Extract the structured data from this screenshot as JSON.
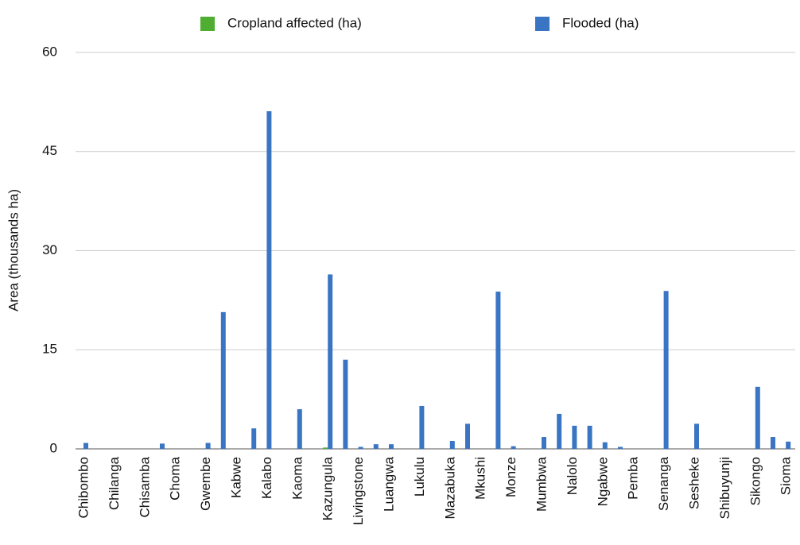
{
  "chart_data": {
    "type": "bar",
    "y_label": "Area (thousands ha)",
    "categories": [
      "Chibombo",
      null,
      "Chilanga",
      null,
      "Chisamba",
      null,
      "Choma",
      null,
      "Gwembe",
      null,
      "Kabwe",
      null,
      "Kalabo",
      null,
      "Kaoma",
      null,
      "Kazungula",
      null,
      "Livingstone",
      null,
      "Luangwa",
      null,
      "Lukulu",
      null,
      "Mazabuka",
      null,
      "Mkushi",
      null,
      "Monze",
      null,
      "Mumbwa",
      null,
      "Nalolo",
      null,
      "Ngabwe",
      null,
      "Pemba",
      null,
      "Senanga",
      null,
      "Sesheke",
      null,
      "Shibuyunji",
      null,
      "Sikongo",
      null,
      "Sioma"
    ],
    "series": [
      {
        "name": "Cropland affected (ha)",
        "color": "#4fae32",
        "values": [
          0,
          0,
          0,
          0,
          0,
          0,
          0,
          0,
          0,
          0,
          0,
          0,
          0,
          0,
          0,
          0,
          0.2,
          0,
          0,
          0,
          0,
          0,
          0,
          0,
          0,
          0,
          0,
          0,
          0,
          0,
          0,
          0,
          0,
          0,
          0,
          0,
          0,
          0,
          0,
          0,
          0,
          0,
          0,
          0,
          0,
          0,
          0
        ]
      },
      {
        "name": "Flooded (ha)",
        "color": "#3a75c4",
        "values": [
          0.9,
          0,
          0,
          0,
          0,
          0.8,
          0,
          0,
          0.9,
          20.7,
          0,
          3.1,
          51.1,
          0,
          6.0,
          0,
          26.4,
          13.5,
          0.3,
          0.7,
          0.7,
          0,
          6.5,
          0,
          1.2,
          3.8,
          0,
          23.8,
          0.4,
          0,
          1.8,
          5.3,
          3.5,
          3.5,
          1.0,
          0.3,
          0,
          0,
          23.9,
          0,
          3.8,
          0,
          0,
          0,
          9.4,
          1.8,
          1.1
        ]
      }
    ],
    "ylim": [
      0,
      60
    ],
    "yticks": [
      0,
      15,
      30,
      45,
      60
    ],
    "grid": true
  }
}
